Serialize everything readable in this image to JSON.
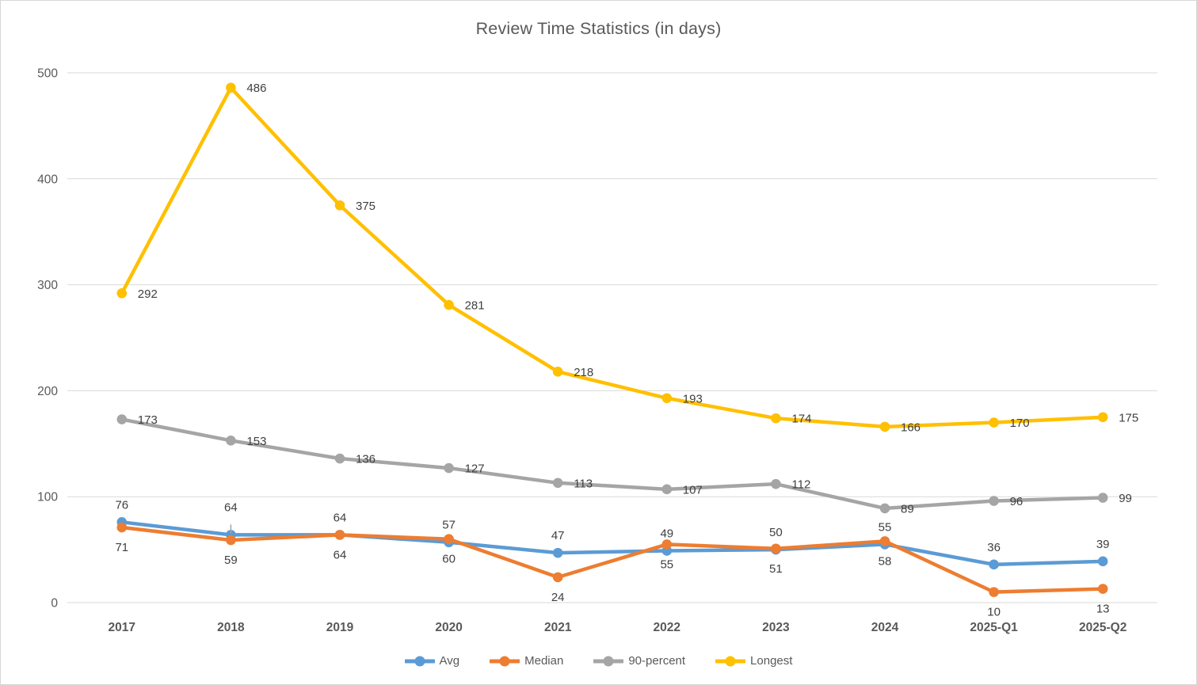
{
  "chart_data": {
    "type": "line",
    "title": "Review Time Statistics (in days)",
    "categories": [
      "2017",
      "2018",
      "2019",
      "2020",
      "2021",
      "2022",
      "2023",
      "2024",
      "2025-Q1",
      "2025-Q2"
    ],
    "series": [
      {
        "name": "Avg",
        "color": "#5B9BD5",
        "label_position": "above",
        "values": [
          76,
          64,
          64,
          57,
          47,
          49,
          50,
          55,
          36,
          39
        ]
      },
      {
        "name": "Median",
        "color": "#ED7D31",
        "label_position": "below",
        "values": [
          71,
          59,
          64,
          60,
          24,
          55,
          51,
          58,
          10,
          13
        ]
      },
      {
        "name": "90-percent",
        "color": "#A5A5A5",
        "label_position": "right",
        "values": [
          173,
          153,
          136,
          127,
          113,
          107,
          112,
          89,
          96,
          99
        ]
      },
      {
        "name": "Longest",
        "color": "#FFC000",
        "label_position": "right",
        "values": [
          292,
          486,
          375,
          281,
          218,
          193,
          174,
          166,
          170,
          175
        ]
      }
    ],
    "y_axis": {
      "min": 0,
      "max": 500,
      "tick_step": 100,
      "tick_labels": [
        "0",
        "100",
        "200",
        "300",
        "400",
        "500"
      ]
    },
    "grid": true,
    "legend_position": "bottom",
    "annotations": [
      {
        "type": "label-leader-line",
        "series": "Avg",
        "category": "2018",
        "label_offset": -30
      }
    ],
    "styles": {
      "gridline_color": "#D9D9D9",
      "axis_text_color": "#595959",
      "data_label_color": "#404040",
      "title_color": "#595959",
      "legend_text_color": "#595959",
      "leader_line_color": "#A6A6A6",
      "background": "#FFFFFF",
      "frame_border_color": "#D7D7D7"
    }
  }
}
